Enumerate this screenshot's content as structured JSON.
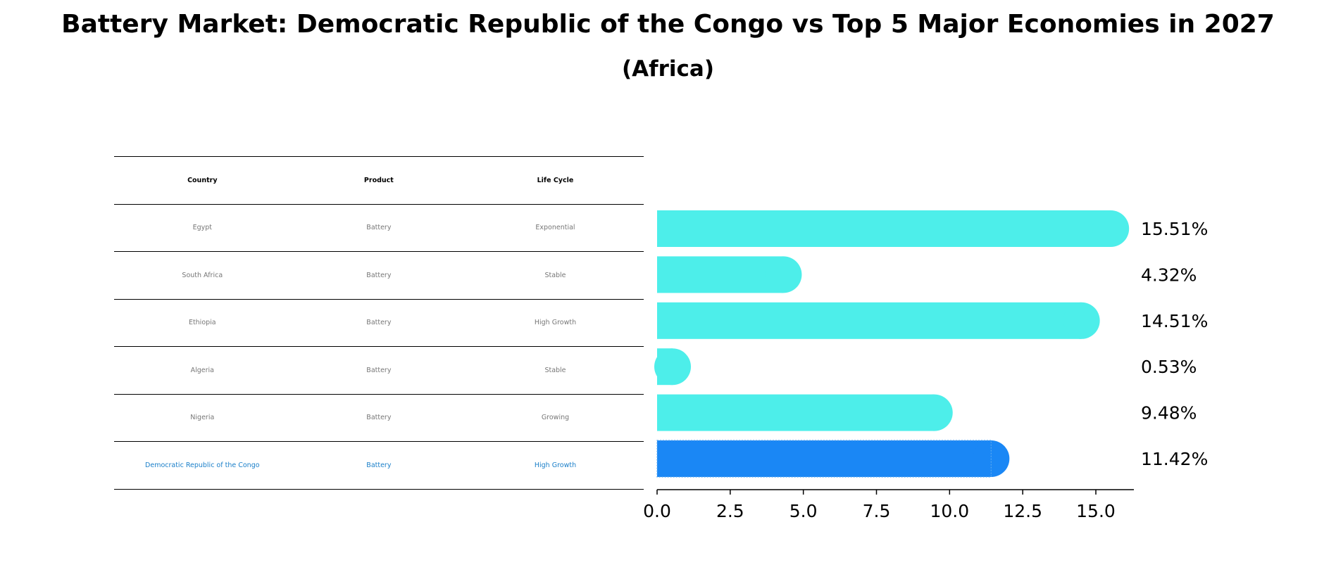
{
  "title": "Battery Market: Democratic Republic of the Congo vs Top 5 Major Economies in 2027",
  "subtitle": "(Africa)",
  "table": {
    "headers": [
      "Country",
      "Product",
      "Life Cycle"
    ],
    "rows": [
      {
        "country": "Egypt",
        "product": "Battery",
        "life_cycle": "Exponential"
      },
      {
        "country": "South Africa",
        "product": "Battery",
        "life_cycle": "Stable"
      },
      {
        "country": "Ethiopia",
        "product": "Battery",
        "life_cycle": "High Growth"
      },
      {
        "country": "Algeria",
        "product": "Battery",
        "life_cycle": "Stable"
      },
      {
        "country": "Nigeria",
        "product": "Battery",
        "life_cycle": "Growing"
      },
      {
        "country": "Democratic Republic of the Congo",
        "product": "Battery",
        "life_cycle": "High Growth"
      }
    ]
  },
  "colors": {
    "bar": "#4deeea",
    "highlight_bar": "#1a87f5",
    "highlight_text": "#1a7fc9",
    "row_text": "#777777"
  },
  "chart_data": {
    "type": "bar",
    "orientation": "horizontal",
    "title": "Battery Market: Democratic Republic of the Congo vs Top 5 Major Economies in 2027",
    "subtitle": "(Africa)",
    "categories": [
      "Egypt",
      "South Africa",
      "Ethiopia",
      "Algeria",
      "Nigeria",
      "Democratic Republic of the Congo"
    ],
    "values": [
      15.51,
      4.32,
      14.51,
      0.53,
      9.48,
      11.42
    ],
    "value_labels": [
      "15.51%",
      "4.32%",
      "14.51%",
      "0.53%",
      "9.48%",
      "11.42%"
    ],
    "highlight_index": 5,
    "xlim": [
      0,
      16.3
    ],
    "xticks": [
      0.0,
      2.5,
      5.0,
      7.5,
      10.0,
      12.5,
      15.0
    ],
    "xtick_labels": [
      "0.0",
      "2.5",
      "5.0",
      "7.5",
      "10.0",
      "12.5",
      "15.0"
    ],
    "xlabel": "",
    "ylabel": "",
    "grid": false
  }
}
